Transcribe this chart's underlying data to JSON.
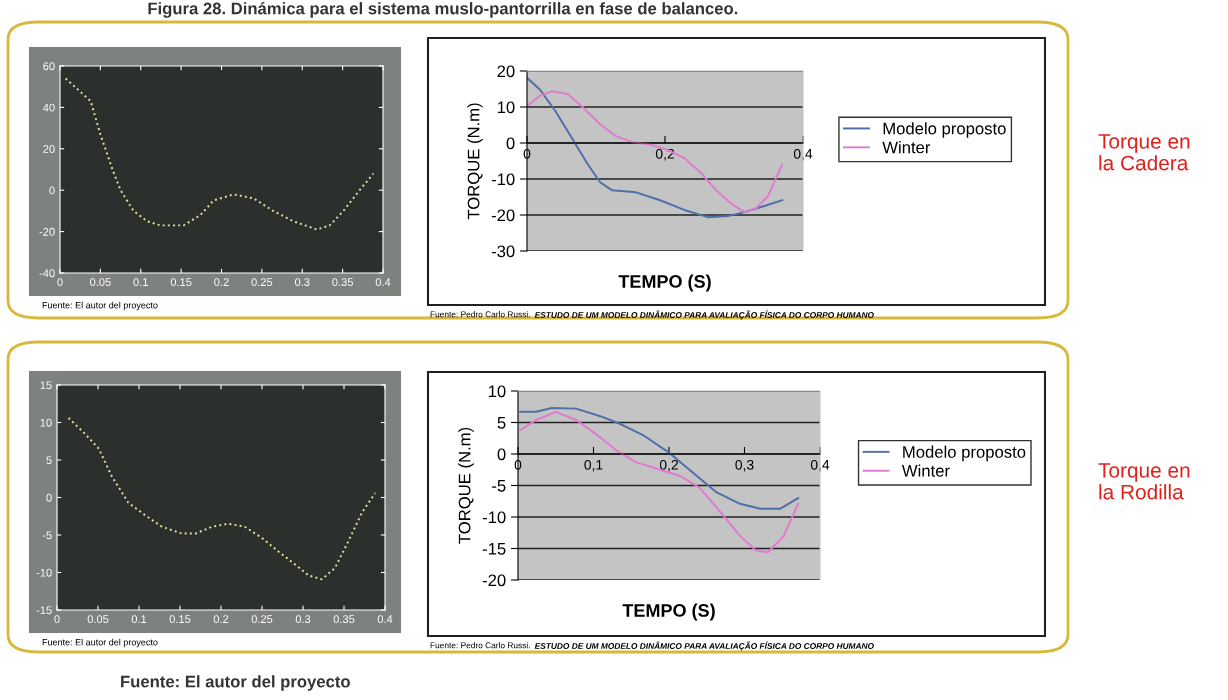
{
  "chart_data": [
    {
      "type": "line",
      "title": "Figura 28. Dinámica para el sistema muslo-pantorrilla en fase de balanceo.",
      "xlim": [
        0,
        0.4
      ],
      "ylim": [
        -40,
        60
      ],
      "xticks": [
        0,
        0.05,
        0.1,
        0.15,
        0.2,
        0.25,
        0.3,
        0.35,
        0.4
      ],
      "yticks": [
        -40,
        -20,
        0,
        20,
        40,
        60
      ],
      "line_style": "dotted",
      "grid": false,
      "legend": false,
      "series": [
        {
          "color": "#e8e0a0",
          "x": [
            0.007,
            0.038,
            0.05,
            0.065,
            0.075,
            0.091,
            0.108,
            0.124,
            0.153,
            0.174,
            0.19,
            0.215,
            0.24,
            0.264,
            0.289,
            0.318,
            0.334,
            0.351,
            0.371,
            0.388
          ],
          "values": [
            54,
            43,
            27,
            10,
            0,
            -10,
            -15,
            -17,
            -17,
            -12,
            -5,
            -2,
            -4,
            -10,
            -15,
            -19,
            -17,
            -10,
            0,
            8
          ]
        }
      ],
      "annotations": [
        "Fuente: El autor del proyecto"
      ]
    },
    {
      "type": "line",
      "xlabel": "TEMPO (S)",
      "ylabel": "TORQUE (N.m)",
      "xlim": [
        0,
        0.4
      ],
      "ylim": [
        -30,
        20
      ],
      "xticks": [
        0,
        {
          "value": 0.2,
          "label": "0,2"
        },
        {
          "value": 0.4,
          "label": "0,4"
        }
      ],
      "yticks": [
        -30,
        -20,
        -10,
        0,
        10,
        20
      ],
      "grid": "y",
      "legend": "right",
      "series": [
        {
          "name": "Modelo proposto",
          "color": "#4f6fa8",
          "x": [
            0,
            0.019,
            0.042,
            0.065,
            0.088,
            0.106,
            0.123,
            0.158,
            0.193,
            0.228,
            0.262,
            0.291,
            0.315,
            0.344,
            0.37
          ],
          "values": [
            18.1,
            14.8,
            8.6,
            1.4,
            -5.9,
            -10.9,
            -13.1,
            -13.7,
            -15.9,
            -18.6,
            -20.6,
            -20.3,
            -19.2,
            -17.5,
            -15.9
          ]
        },
        {
          "name": "Winter",
          "color": "#e07ad0",
          "x": [
            0.002,
            0.019,
            0.036,
            0.059,
            0.082,
            0.106,
            0.129,
            0.152,
            0.181,
            0.204,
            0.228,
            0.251,
            0.274,
            0.297,
            0.315,
            0.332,
            0.349,
            0.37
          ],
          "values": [
            10.6,
            13.1,
            14.4,
            13.6,
            9.7,
            5.2,
            1.9,
            0.3,
            -0.5,
            -2.0,
            -4.2,
            -8.1,
            -13.1,
            -17.0,
            -19.2,
            -18.1,
            -14.8,
            -5.9
          ]
        }
      ],
      "annotations": [
        "Fuente: Pedro Carlo Russi.",
        "ESTUDO DE UM MODELO DINÂMICO PARA AVALIAÇÃO FÍSICA DO CORPO HUMANO",
        "Torque en\nla Cadera"
      ]
    },
    {
      "type": "line",
      "xlim": [
        0,
        0.4
      ],
      "ylim": [
        -15,
        15
      ],
      "xticks": [
        0,
        0.05,
        0.1,
        0.15,
        0.2,
        0.25,
        0.3,
        0.35,
        0.4
      ],
      "yticks": [
        -15,
        -10,
        -5,
        0,
        5,
        10,
        15
      ],
      "line_style": "dotted",
      "grid": false,
      "legend": false,
      "series": [
        {
          "color": "#e8e0a0",
          "x": [
            0.014,
            0.035,
            0.051,
            0.067,
            0.087,
            0.108,
            0.128,
            0.152,
            0.169,
            0.189,
            0.209,
            0.229,
            0.25,
            0.27,
            0.29,
            0.307,
            0.323,
            0.339,
            0.355,
            0.372,
            0.388
          ],
          "values": [
            10.6,
            8.4,
            6.5,
            2.8,
            -0.7,
            -2.4,
            -3.9,
            -4.8,
            -4.8,
            -3.9,
            -3.5,
            -3.9,
            -5.4,
            -7.2,
            -8.9,
            -10.4,
            -10.9,
            -9.4,
            -5.9,
            -2.0,
            0.6
          ]
        }
      ],
      "annotations": [
        "Fuente: El autor del proyecto",
        "Fuente: El autor del proyecto"
      ]
    },
    {
      "type": "line",
      "xlabel": "TEMPO (S)",
      "ylabel": "TORQUE (N.m)",
      "xlim": [
        0,
        0.4
      ],
      "ylim": [
        -20,
        10
      ],
      "xticks": [
        0,
        {
          "value": 0.1,
          "label": "0,1"
        },
        {
          "value": 0.2,
          "label": "0,2"
        },
        {
          "value": 0.3,
          "label": "0,3"
        },
        {
          "value": 0.4,
          "label": "0,4"
        }
      ],
      "yticks": [
        -20,
        -15,
        -10,
        -5,
        0,
        5,
        10
      ],
      "grid": "y",
      "legend": "right",
      "series": [
        {
          "name": "Modelo proposto",
          "color": "#4f6fa8",
          "x": [
            0.003,
            0.024,
            0.045,
            0.077,
            0.109,
            0.135,
            0.167,
            0.199,
            0.231,
            0.262,
            0.294,
            0.321,
            0.347,
            0.371
          ],
          "values": [
            6.7,
            6.7,
            7.3,
            7.2,
            6.0,
            4.8,
            2.9,
            0.3,
            -2.9,
            -6.0,
            -7.9,
            -8.7,
            -8.7,
            -7.0
          ]
        },
        {
          "name": "Winter",
          "color": "#e07ad0",
          "x": [
            0.003,
            0.024,
            0.05,
            0.077,
            0.103,
            0.13,
            0.156,
            0.188,
            0.215,
            0.241,
            0.268,
            0.294,
            0.315,
            0.331,
            0.352,
            0.371
          ],
          "values": [
            3.8,
            5.4,
            6.7,
            5.4,
            3.2,
            0.6,
            -1.3,
            -2.5,
            -3.5,
            -5.4,
            -9.2,
            -13.0,
            -15.3,
            -15.6,
            -13.0,
            -7.9
          ]
        }
      ],
      "annotations": [
        "Fuente: Pedro Carlo Russi.",
        "ESTUDO DE UM MODELO DINÂMICO PARA AVALIAÇÃO FÍSICA DO CORPO HUMANO",
        "Torque en\nla Rodilla"
      ]
    }
  ]
}
